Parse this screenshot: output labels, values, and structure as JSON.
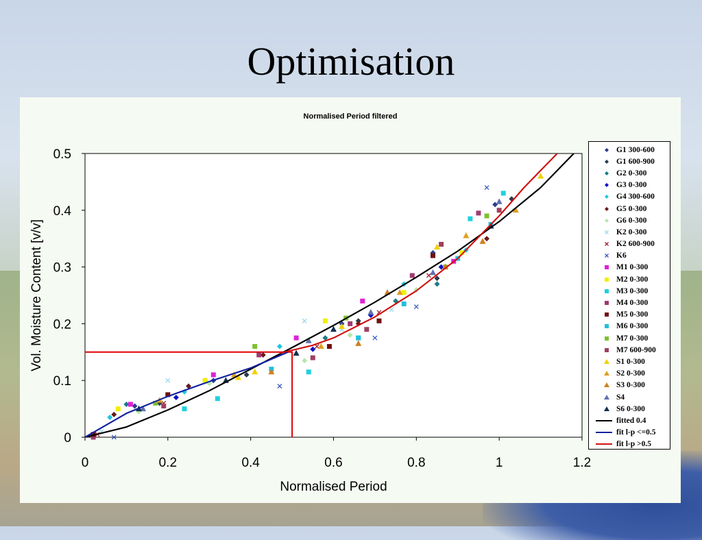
{
  "slide": {
    "title": "Optimisation"
  },
  "chart_data": {
    "type": "scatter",
    "title": "Normalised Period filtered",
    "xlabel": "Normalised Period",
    "ylabel": "Vol. Moisture Content [v/v]",
    "xlim": [
      0,
      1.2
    ],
    "ylim": [
      0,
      0.5
    ],
    "xticks": [
      0,
      0.2,
      0.4,
      0.6,
      0.8,
      1,
      1.2
    ],
    "xtick_labels": [
      "0",
      "0.2",
      "0.4",
      "0.6",
      "0.8",
      "1",
      "1.2"
    ],
    "yticks": [
      0,
      0.1,
      0.2,
      0.3,
      0.4,
      0.5
    ],
    "ytick_labels": [
      "0",
      "0.1",
      "0.2",
      "0.3",
      "0.4",
      "0.5"
    ],
    "grid": false,
    "legend_position": "right",
    "guide_lines": [
      {
        "color": "#e00000",
        "points": [
          [
            0,
            0.15
          ],
          [
            0.5,
            0.15
          ],
          [
            0.5,
            0
          ]
        ]
      }
    ],
    "series": [
      {
        "name": "G1 300-600",
        "kind": "scatter",
        "marker": "diamond",
        "color": "#2e3f8e",
        "points": [
          [
            0.12,
            0.055
          ],
          [
            0.31,
            0.1
          ],
          [
            0.62,
            0.2
          ],
          [
            0.84,
            0.325
          ],
          [
            0.99,
            0.41
          ]
        ]
      },
      {
        "name": "G1 600-900",
        "kind": "scatter",
        "marker": "diamond",
        "color": "#2b3b4b",
        "points": [
          [
            0.18,
            0.06
          ],
          [
            0.39,
            0.11
          ],
          [
            0.66,
            0.205
          ],
          [
            0.85,
            0.28
          ],
          [
            1.03,
            0.42
          ]
        ]
      },
      {
        "name": "G2 0-300",
        "kind": "scatter",
        "marker": "diamond",
        "color": "#1a7a8a",
        "points": [
          [
            0.1,
            0.058
          ],
          [
            0.29,
            0.1
          ],
          [
            0.58,
            0.175
          ],
          [
            0.75,
            0.24
          ],
          [
            0.85,
            0.27
          ]
        ]
      },
      {
        "name": "G3 0-300",
        "kind": "scatter",
        "marker": "diamond",
        "color": "#1010c8",
        "points": [
          [
            0.02,
            0.003
          ],
          [
            0.22,
            0.07
          ],
          [
            0.55,
            0.155
          ],
          [
            0.69,
            0.215
          ],
          [
            0.86,
            0.3
          ]
        ]
      },
      {
        "name": "G4 300-600",
        "kind": "scatter",
        "marker": "diamond",
        "color": "#22c6e0",
        "points": [
          [
            0.06,
            0.035
          ],
          [
            0.24,
            0.08
          ],
          [
            0.47,
            0.16
          ],
          [
            0.77,
            0.27
          ],
          [
            0.92,
            0.33
          ]
        ]
      },
      {
        "name": "G5 0-300",
        "kind": "scatter",
        "marker": "diamond",
        "color": "#6b1a1a",
        "points": [
          [
            0.07,
            0.04
          ],
          [
            0.25,
            0.09
          ],
          [
            0.43,
            0.145
          ],
          [
            0.66,
            0.2
          ],
          [
            0.97,
            0.35
          ]
        ]
      },
      {
        "name": "G6 0-300",
        "kind": "scatter",
        "marker": "diamond",
        "color": "#b8e6b0",
        "points": [
          [
            0.13,
            0.045
          ],
          [
            0.3,
            0.095
          ],
          [
            0.53,
            0.135
          ],
          [
            0.64,
            0.18
          ],
          [
            0.8,
            0.26
          ]
        ]
      },
      {
        "name": "K2 0-300",
        "kind": "scatter",
        "marker": "x",
        "color": "#9ad8f0",
        "points": [
          [
            0.04,
            0.01
          ],
          [
            0.2,
            0.1
          ],
          [
            0.53,
            0.205
          ],
          [
            0.62,
            0.19
          ],
          [
            0.74,
            0.225
          ]
        ]
      },
      {
        "name": "K2 600-900",
        "kind": "scatter",
        "marker": "x",
        "color": "#a02030",
        "points": [
          [
            0.03,
            0.005
          ],
          [
            0.19,
            0.06
          ],
          [
            0.56,
            0.16
          ],
          [
            0.71,
            0.22
          ],
          [
            0.83,
            0.285
          ]
        ]
      },
      {
        "name": "K6",
        "kind": "scatter",
        "marker": "x",
        "color": "#3a5ac0",
        "points": [
          [
            0.07,
            0.0
          ],
          [
            0.47,
            0.09
          ],
          [
            0.7,
            0.175
          ],
          [
            0.8,
            0.23
          ],
          [
            0.97,
            0.44
          ]
        ]
      },
      {
        "name": "M1 0-300",
        "kind": "scatter",
        "marker": "square",
        "color": "#e020d8",
        "points": [
          [
            0.11,
            0.058
          ],
          [
            0.31,
            0.11
          ],
          [
            0.51,
            0.175
          ],
          [
            0.67,
            0.24
          ],
          [
            0.89,
            0.31
          ]
        ]
      },
      {
        "name": "M2 0-300",
        "kind": "scatter",
        "marker": "square",
        "color": "#f0f000",
        "points": [
          [
            0.08,
            0.05
          ],
          [
            0.29,
            0.1
          ],
          [
            0.58,
            0.205
          ],
          [
            0.77,
            0.255
          ],
          [
            0.91,
            0.325
          ]
        ]
      },
      {
        "name": "M3 0-300",
        "kind": "scatter",
        "marker": "square",
        "color": "#20d0e0",
        "points": [
          [
            0.24,
            0.05
          ],
          [
            0.32,
            0.068
          ],
          [
            0.54,
            0.115
          ],
          [
            0.66,
            0.175
          ],
          [
            0.93,
            0.385
          ],
          [
            1.01,
            0.43
          ]
        ]
      },
      {
        "name": "M4 0-300",
        "kind": "scatter",
        "marker": "square",
        "color": "#a03a70",
        "points": [
          [
            0.02,
            0.0
          ],
          [
            0.42,
            0.145
          ],
          [
            0.64,
            0.2
          ],
          [
            0.79,
            0.285
          ],
          [
            0.95,
            0.395
          ]
        ]
      },
      {
        "name": "M5 0-300",
        "kind": "scatter",
        "marker": "square",
        "color": "#701010",
        "points": [
          [
            0.02,
            0.005
          ],
          [
            0.2,
            0.075
          ],
          [
            0.59,
            0.16
          ],
          [
            0.71,
            0.205
          ],
          [
            0.84,
            0.32
          ]
        ]
      },
      {
        "name": "M6 0-300",
        "kind": "scatter",
        "marker": "square",
        "color": "#20c0e0",
        "points": [
          [
            0.45,
            0.12
          ],
          [
            0.66,
            0.175
          ],
          [
            0.77,
            0.235
          ],
          [
            0.9,
            0.315
          ],
          [
            0.98,
            0.375
          ]
        ]
      },
      {
        "name": "M7 0-300",
        "kind": "scatter",
        "marker": "square",
        "color": "#80c030",
        "points": [
          [
            0.17,
            0.06
          ],
          [
            0.41,
            0.16
          ],
          [
            0.63,
            0.21
          ],
          [
            0.87,
            0.3
          ],
          [
            0.97,
            0.39
          ]
        ]
      },
      {
        "name": "M7 600-900",
        "kind": "scatter",
        "marker": "square",
        "color": "#a04060",
        "points": [
          [
            0.19,
            0.055
          ],
          [
            0.55,
            0.14
          ],
          [
            0.68,
            0.19
          ],
          [
            0.86,
            0.34
          ],
          [
            1.0,
            0.4
          ]
        ]
      },
      {
        "name": "S1 0-300",
        "kind": "scatter",
        "marker": "triangle",
        "color": "#f0d000",
        "points": [
          [
            0.37,
            0.105
          ],
          [
            0.41,
            0.115
          ],
          [
            0.62,
            0.195
          ],
          [
            0.85,
            0.335
          ],
          [
            1.1,
            0.46
          ]
        ]
      },
      {
        "name": "S2 0-300",
        "kind": "scatter",
        "marker": "triangle",
        "color": "#e0a020",
        "points": [
          [
            0.18,
            0.065
          ],
          [
            0.36,
            0.11
          ],
          [
            0.57,
            0.16
          ],
          [
            0.76,
            0.255
          ],
          [
            0.92,
            0.355
          ],
          [
            1.04,
            0.4
          ]
        ]
      },
      {
        "name": "S3 0-300",
        "kind": "scatter",
        "marker": "triangle",
        "color": "#d08020",
        "points": [
          [
            0.45,
            0.115
          ],
          [
            0.66,
            0.165
          ],
          [
            0.73,
            0.255
          ],
          [
            0.87,
            0.3
          ],
          [
            0.96,
            0.345
          ]
        ]
      },
      {
        "name": "S4",
        "kind": "scatter",
        "marker": "triangle",
        "color": "#6070b0",
        "points": [
          [
            0.14,
            0.05
          ],
          [
            0.54,
            0.17
          ],
          [
            0.69,
            0.22
          ],
          [
            0.84,
            0.29
          ],
          [
            1.0,
            0.415
          ]
        ]
      },
      {
        "name": "S6 0-300",
        "kind": "scatter",
        "marker": "triangle",
        "color": "#103050",
        "points": [
          [
            0.13,
            0.05
          ],
          [
            0.34,
            0.1
          ],
          [
            0.51,
            0.148
          ],
          [
            0.6,
            0.19
          ],
          [
            0.98,
            0.372
          ]
        ]
      },
      {
        "name": "fitted 0.4",
        "kind": "line",
        "color": "#000000",
        "points": [
          [
            0,
            0
          ],
          [
            0.1,
            0.018
          ],
          [
            0.2,
            0.048
          ],
          [
            0.3,
            0.082
          ],
          [
            0.4,
            0.12
          ],
          [
            0.5,
            0.158
          ],
          [
            0.6,
            0.197
          ],
          [
            0.7,
            0.238
          ],
          [
            0.8,
            0.282
          ],
          [
            0.9,
            0.328
          ],
          [
            1.0,
            0.38
          ],
          [
            1.1,
            0.44
          ],
          [
            1.18,
            0.5
          ]
        ]
      },
      {
        "name": "fit l-p <=0.5",
        "kind": "line",
        "color": "#1020a0",
        "points": [
          [
            0,
            0
          ],
          [
            0.1,
            0.042
          ],
          [
            0.2,
            0.072
          ],
          [
            0.3,
            0.098
          ],
          [
            0.4,
            0.122
          ],
          [
            0.49,
            0.15
          ]
        ]
      },
      {
        "name": "fit l-p >0.5",
        "kind": "line",
        "color": "#d01010",
        "points": [
          [
            0.47,
            0.148
          ],
          [
            0.55,
            0.162
          ],
          [
            0.6,
            0.175
          ],
          [
            0.7,
            0.212
          ],
          [
            0.8,
            0.258
          ],
          [
            0.9,
            0.315
          ],
          [
            1.0,
            0.39
          ],
          [
            1.06,
            0.44
          ],
          [
            1.14,
            0.5
          ]
        ]
      }
    ]
  }
}
